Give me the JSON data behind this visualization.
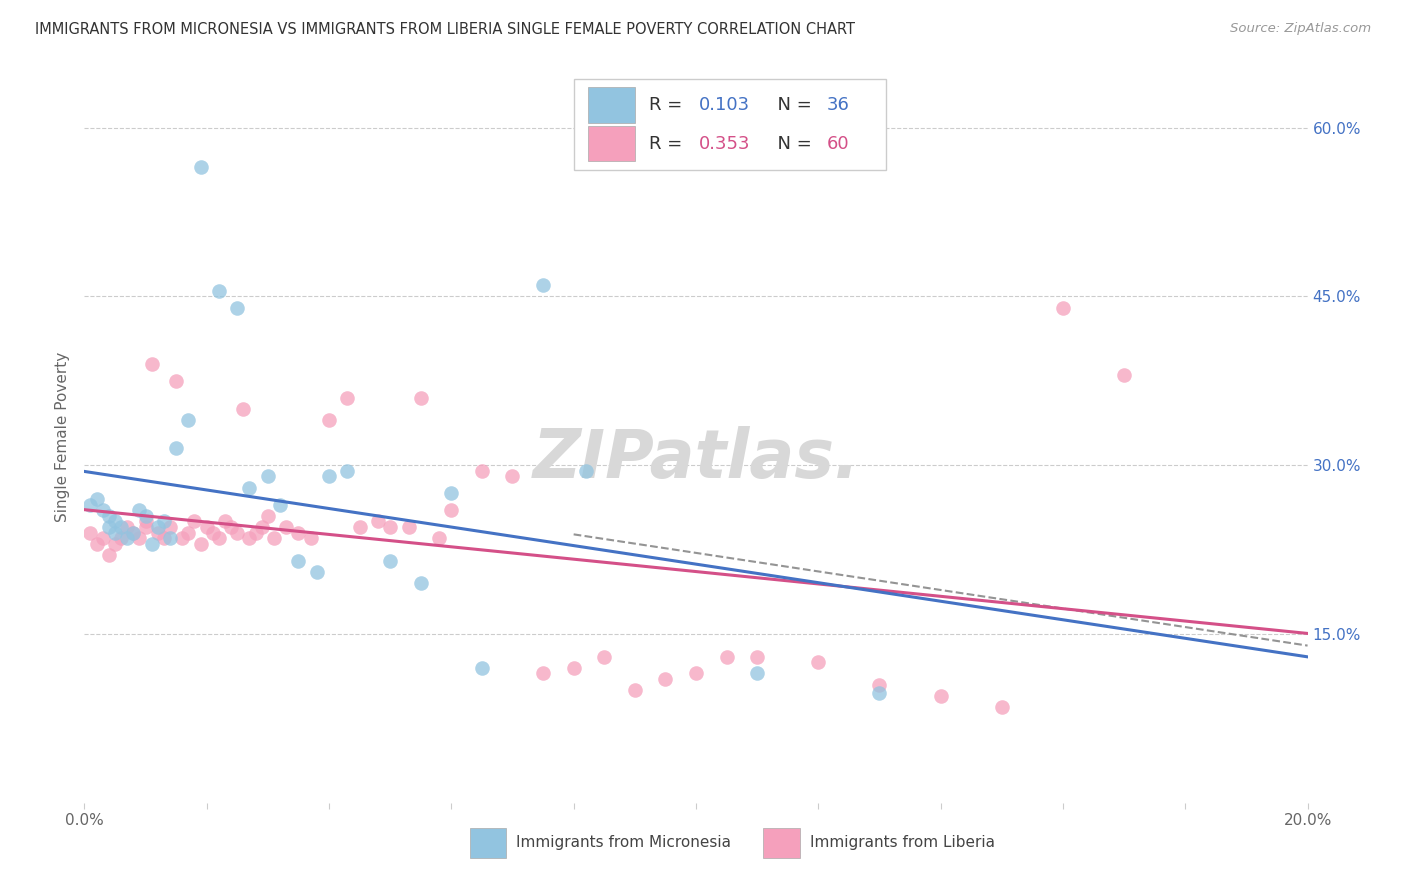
{
  "title": "IMMIGRANTS FROM MICRONESIA VS IMMIGRANTS FROM LIBERIA SINGLE FEMALE POVERTY CORRELATION CHART",
  "source": "Source: ZipAtlas.com",
  "ylabel": "Single Female Poverty",
  "xlim": [
    0.0,
    0.2
  ],
  "ylim": [
    0.0,
    0.65
  ],
  "color_blue": "#92c4e0",
  "color_pink": "#f5a0bc",
  "color_blue_line": "#4472c4",
  "color_pink_line": "#d45088",
  "color_blue_text": "#4472c4",
  "color_pink_text": "#d45088",
  "watermark": "ZIPatlas.",
  "background_color": "#ffffff",
  "right_yticks": [
    0.15,
    0.3,
    0.45,
    0.6
  ],
  "right_ytick_labels": [
    "15.0%",
    "30.0%",
    "45.0%",
    "60.0%"
  ],
  "legend_label_1": "Immigrants from Micronesia",
  "legend_label_2": "Immigrants from Liberia",
  "micronesia_x": [
    0.001,
    0.002,
    0.003,
    0.004,
    0.004,
    0.005,
    0.005,
    0.006,
    0.007,
    0.008,
    0.009,
    0.01,
    0.011,
    0.012,
    0.013,
    0.014,
    0.015,
    0.017,
    0.019,
    0.022,
    0.025,
    0.027,
    0.03,
    0.032,
    0.035,
    0.038,
    0.04,
    0.043,
    0.05,
    0.055,
    0.06,
    0.065,
    0.075,
    0.082,
    0.11,
    0.13
  ],
  "micronesia_y": [
    0.265,
    0.27,
    0.26,
    0.255,
    0.245,
    0.25,
    0.24,
    0.245,
    0.235,
    0.24,
    0.26,
    0.255,
    0.23,
    0.245,
    0.25,
    0.235,
    0.315,
    0.34,
    0.565,
    0.455,
    0.44,
    0.28,
    0.29,
    0.265,
    0.215,
    0.205,
    0.29,
    0.295,
    0.215,
    0.195,
    0.275,
    0.12,
    0.46,
    0.295,
    0.115,
    0.098
  ],
  "liberia_x": [
    0.001,
    0.002,
    0.003,
    0.004,
    0.005,
    0.006,
    0.007,
    0.008,
    0.009,
    0.01,
    0.01,
    0.011,
    0.012,
    0.013,
    0.014,
    0.015,
    0.016,
    0.017,
    0.018,
    0.019,
    0.02,
    0.021,
    0.022,
    0.023,
    0.024,
    0.025,
    0.026,
    0.027,
    0.028,
    0.029,
    0.03,
    0.031,
    0.033,
    0.035,
    0.037,
    0.04,
    0.043,
    0.045,
    0.048,
    0.05,
    0.053,
    0.055,
    0.058,
    0.06,
    0.065,
    0.07,
    0.075,
    0.08,
    0.085,
    0.09,
    0.095,
    0.1,
    0.105,
    0.11,
    0.12,
    0.13,
    0.14,
    0.15,
    0.16,
    0.17
  ],
  "liberia_y": [
    0.24,
    0.23,
    0.235,
    0.22,
    0.23,
    0.235,
    0.245,
    0.24,
    0.235,
    0.245,
    0.25,
    0.39,
    0.24,
    0.235,
    0.245,
    0.375,
    0.235,
    0.24,
    0.25,
    0.23,
    0.245,
    0.24,
    0.235,
    0.25,
    0.245,
    0.24,
    0.35,
    0.235,
    0.24,
    0.245,
    0.255,
    0.235,
    0.245,
    0.24,
    0.235,
    0.34,
    0.36,
    0.245,
    0.25,
    0.245,
    0.245,
    0.36,
    0.235,
    0.26,
    0.295,
    0.29,
    0.115,
    0.12,
    0.13,
    0.1,
    0.11,
    0.115,
    0.13,
    0.13,
    0.125,
    0.105,
    0.095,
    0.085,
    0.44,
    0.38
  ]
}
